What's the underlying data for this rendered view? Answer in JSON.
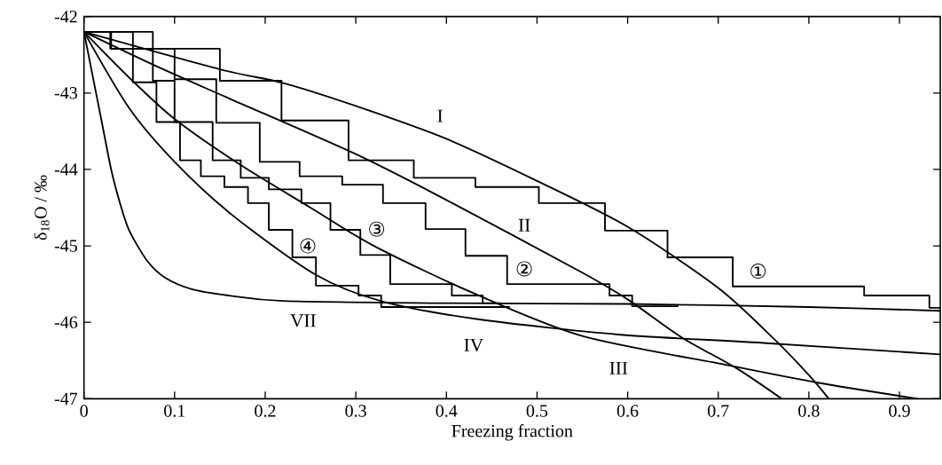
{
  "chart_data": {
    "type": "line",
    "xlabel": "Freezing fraction",
    "ylabel": "δ$_{18}$O / ‰",
    "xlim": [
      0,
      0.945
    ],
    "ylim": [
      -47,
      -42
    ],
    "xticks": [
      0,
      0.1,
      0.2,
      0.3,
      0.4,
      0.5,
      0.6,
      0.7,
      0.8,
      0.9
    ],
    "yticks": [
      -47,
      -46,
      -45,
      -44,
      -43,
      -42
    ],
    "series": [
      {
        "name": "I",
        "color": "#000000",
        "x": [
          0,
          0.15,
          0.22,
          0.3,
          0.4,
          0.5,
          0.6,
          0.7,
          0.76,
          0.8,
          0.822
        ],
        "values": [
          -42.2,
          -42.69,
          -42.87,
          -43.17,
          -43.6,
          -44.15,
          -44.75,
          -45.55,
          -46.2,
          -46.69,
          -47
        ]
      },
      {
        "name": "II",
        "color": "#000000",
        "x": [
          0,
          0.08,
          0.16,
          0.3,
          0.4,
          0.55,
          0.6,
          0.66,
          0.72,
          0.77
        ],
        "values": [
          -42.2,
          -42.65,
          -43.07,
          -43.8,
          -44.4,
          -45.35,
          -45.7,
          -46.2,
          -46.6,
          -47
        ]
      },
      {
        "name": "III",
        "color": "#000000",
        "x": [
          0,
          0.05,
          0.1,
          0.17,
          0.25,
          0.32,
          0.43,
          0.55,
          0.71,
          0.81,
          0.92
        ],
        "values": [
          -42.2,
          -42.8,
          -43.34,
          -43.92,
          -44.5,
          -45.0,
          -45.62,
          -46.18,
          -46.56,
          -46.79,
          -47.0
        ]
      },
      {
        "name": "IV",
        "color": "#000000",
        "x": [
          0,
          0.05,
          0.1,
          0.164,
          0.256,
          0.33,
          0.435,
          0.59,
          0.75,
          0.945
        ],
        "values": [
          -42.2,
          -43.2,
          -43.9,
          -44.6,
          -45.38,
          -45.73,
          -45.96,
          -46.16,
          -46.27,
          -46.42
        ]
      },
      {
        "name": "VII",
        "color": "#000000",
        "x": [
          0,
          0.01,
          0.02,
          0.03,
          0.04,
          0.05,
          0.07,
          0.09,
          0.12,
          0.16,
          0.22,
          0.4,
          0.6,
          0.8,
          0.945
        ],
        "values": [
          -42.2,
          -42.8,
          -43.4,
          -44.0,
          -44.45,
          -44.8,
          -45.2,
          -45.42,
          -45.57,
          -45.65,
          -45.72,
          -45.75,
          -45.76,
          -45.8,
          -45.85
        ]
      },
      {
        "name": "①",
        "type": "step",
        "color": "#000000",
        "x": [
          0,
          0.076,
          0.15,
          0.218,
          0.292,
          0.364,
          0.432,
          0.502,
          0.575,
          0.644,
          0.716,
          0.861,
          0.933,
          0.945
        ],
        "values": [
          -42.2,
          -42.42,
          -42.84,
          -43.36,
          -43.88,
          -44.11,
          -44.23,
          -44.44,
          -44.8,
          -45.15,
          -45.53,
          -45.65,
          -45.81,
          -45.81
        ]
      },
      {
        "name": "②",
        "type": "step",
        "color": "#000000",
        "x": [
          0,
          0.029,
          0.1,
          0.146,
          0.194,
          0.238,
          0.285,
          0.33,
          0.377,
          0.421,
          0.467,
          0.58,
          0.605,
          0.656
        ],
        "values": [
          -42.2,
          -42.42,
          -42.82,
          -43.39,
          -43.9,
          -44.09,
          -44.2,
          -44.44,
          -44.78,
          -45.13,
          -45.5,
          -45.65,
          -45.79,
          -45.79
        ]
      },
      {
        "name": "③",
        "type": "step",
        "color": "#000000",
        "x": [
          0,
          0.03,
          0.076,
          0.1,
          0.142,
          0.173,
          0.204,
          0.24,
          0.272,
          0.305,
          0.338,
          0.406,
          0.44,
          0.46
        ],
        "values": [
          -42.2,
          -42.42,
          -42.84,
          -43.38,
          -43.88,
          -44.11,
          -44.26,
          -44.44,
          -44.79,
          -45.12,
          -45.5,
          -45.65,
          -45.75,
          -45.75
        ]
      },
      {
        "name": "④",
        "type": "step",
        "color": "#000000",
        "x": [
          0,
          0.054,
          0.08,
          0.106,
          0.129,
          0.155,
          0.181,
          0.204,
          0.23,
          0.256,
          0.303,
          0.328,
          0.47
        ],
        "values": [
          -42.2,
          -42.86,
          -43.38,
          -43.88,
          -44.09,
          -44.23,
          -44.44,
          -44.79,
          -45.15,
          -45.52,
          -45.65,
          -45.8,
          -45.8
        ]
      }
    ]
  }
}
